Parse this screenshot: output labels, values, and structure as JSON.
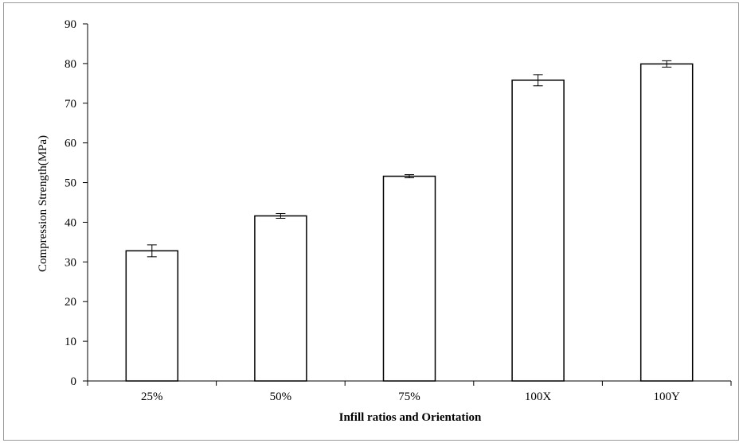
{
  "chart_data": {
    "type": "bar",
    "categories": [
      "25%",
      "50%",
      "75%",
      "100X",
      "100Y"
    ],
    "values": [
      32.8,
      41.6,
      51.6,
      75.8,
      79.9
    ],
    "error": [
      1.5,
      0.6,
      0.4,
      1.4,
      0.8
    ],
    "xlabel": "Infill ratios and Orientation",
    "ylabel": "Compression Strength(MPa)",
    "ylim": [
      0,
      90
    ],
    "yticks": [
      0,
      10,
      20,
      30,
      40,
      50,
      60,
      70,
      80,
      90
    ],
    "grid": false,
    "bar_fill": "#ffffff",
    "bar_stroke": "#000000"
  }
}
